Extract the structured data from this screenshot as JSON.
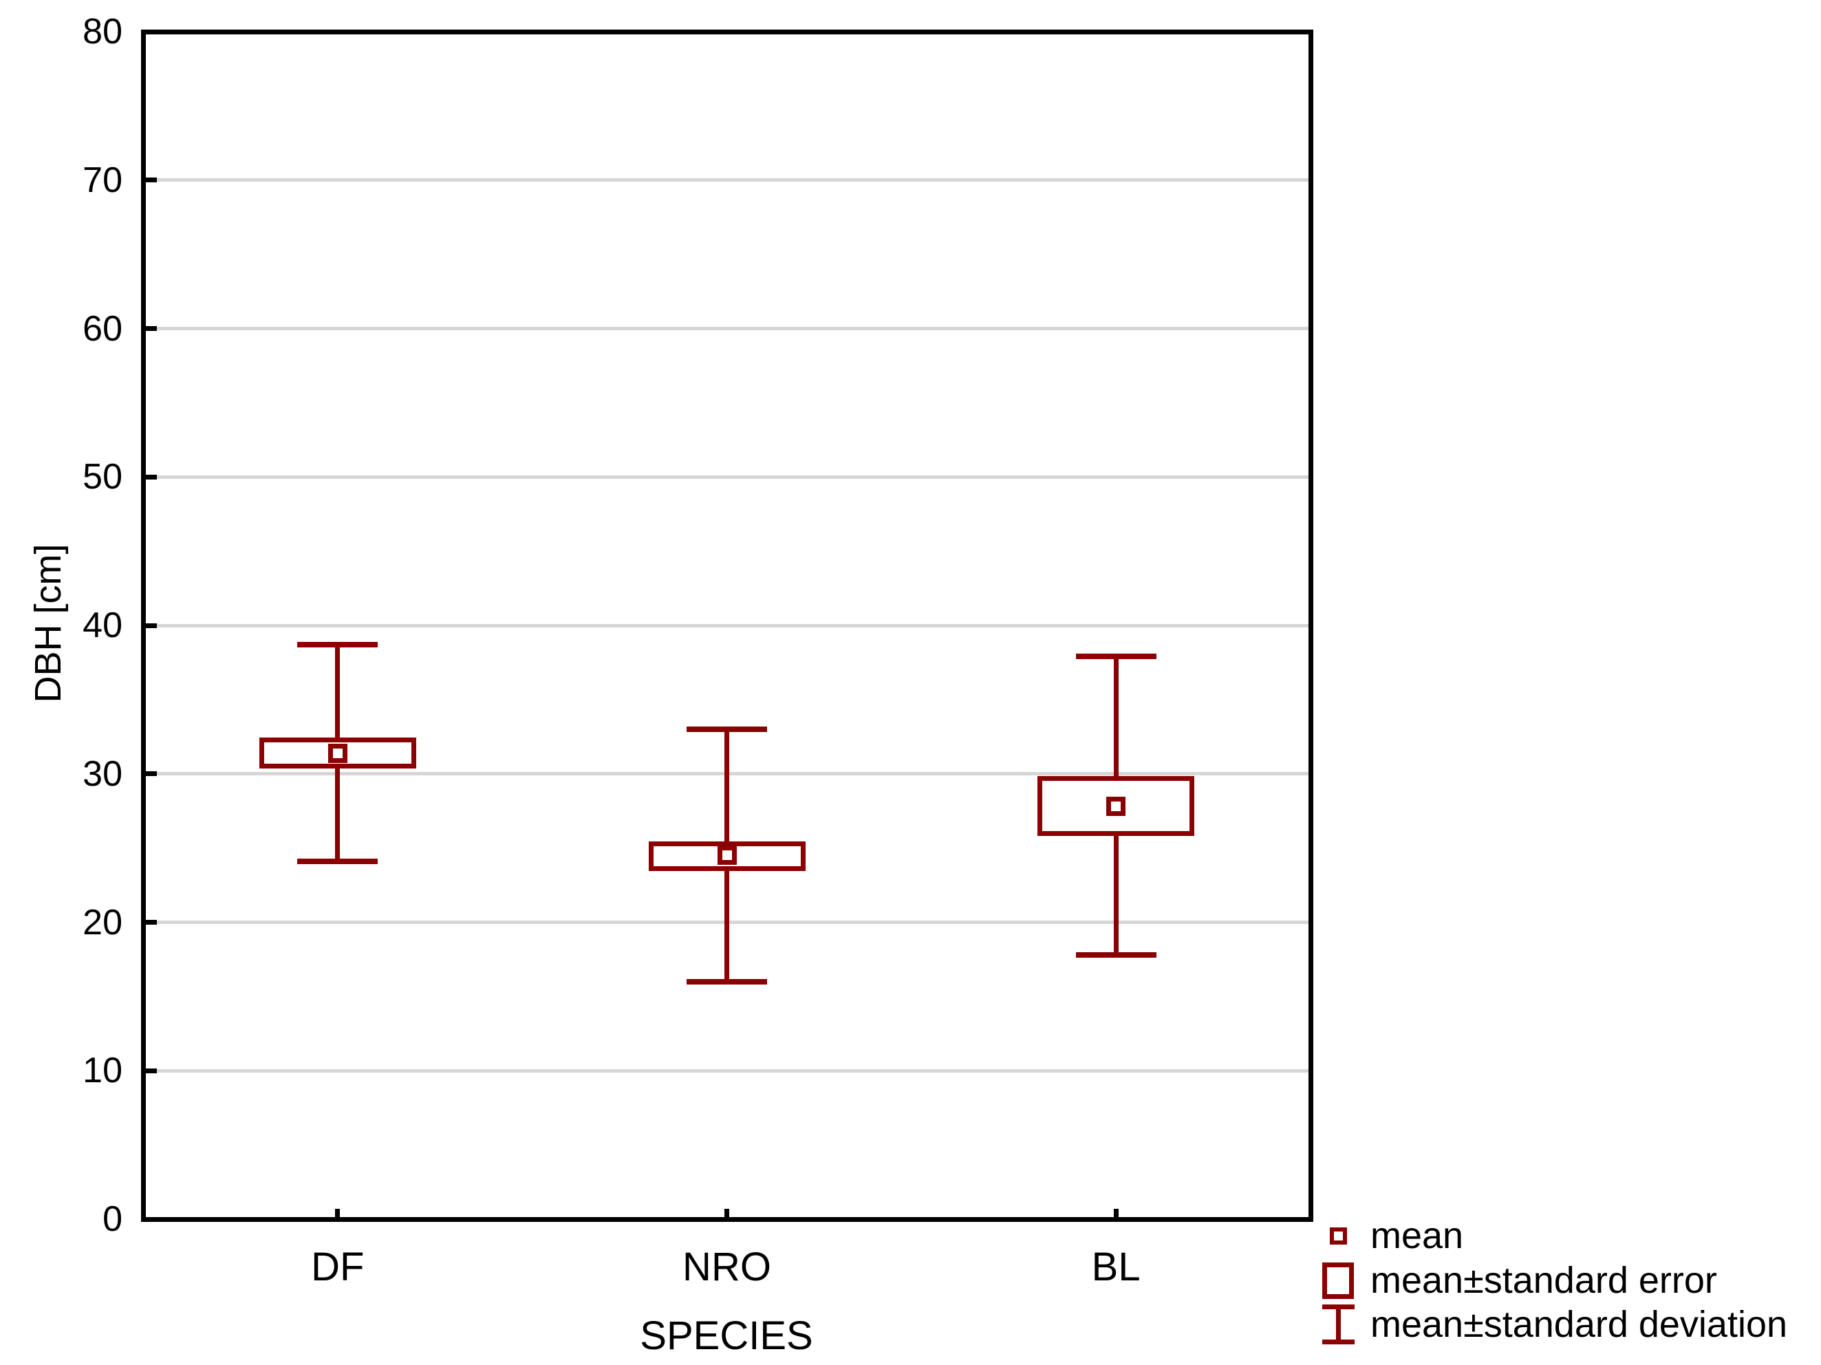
{
  "chart_data": {
    "type": "box-whisker",
    "title": "",
    "xlabel": "SPECIES",
    "ylabel": "DBH [cm]",
    "ylim": [
      0,
      80
    ],
    "yticks": [
      0,
      10,
      20,
      30,
      40,
      50,
      60,
      70,
      80
    ],
    "grid": "horizontal-only",
    "legend_position": "bottom-right",
    "categories": [
      "DF",
      "NRO",
      "BL"
    ],
    "series": [
      {
        "category": "DF",
        "mean": 31.4,
        "se_low": 30.5,
        "se_high": 32.3,
        "sd_low": 24.1,
        "sd_high": 38.7
      },
      {
        "category": "NRO",
        "mean": 24.5,
        "se_low": 23.6,
        "se_high": 25.3,
        "sd_low": 16.0,
        "sd_high": 33.0
      },
      {
        "category": "BL",
        "mean": 27.8,
        "se_low": 26.0,
        "se_high": 29.7,
        "sd_low": 17.8,
        "sd_high": 37.9
      }
    ]
  },
  "legend": {
    "items": [
      {
        "symbol": "mean-square-icon",
        "label": "mean"
      },
      {
        "symbol": "se-box-icon",
        "label": "mean±standard error"
      },
      {
        "symbol": "sd-whisker-icon",
        "label": "mean±standard deviation"
      }
    ]
  },
  "colors": {
    "series": "#8B0000",
    "axis": "#000000",
    "grid": "#D6D6D6",
    "background": "#FFFFFF",
    "text": "#000000"
  }
}
